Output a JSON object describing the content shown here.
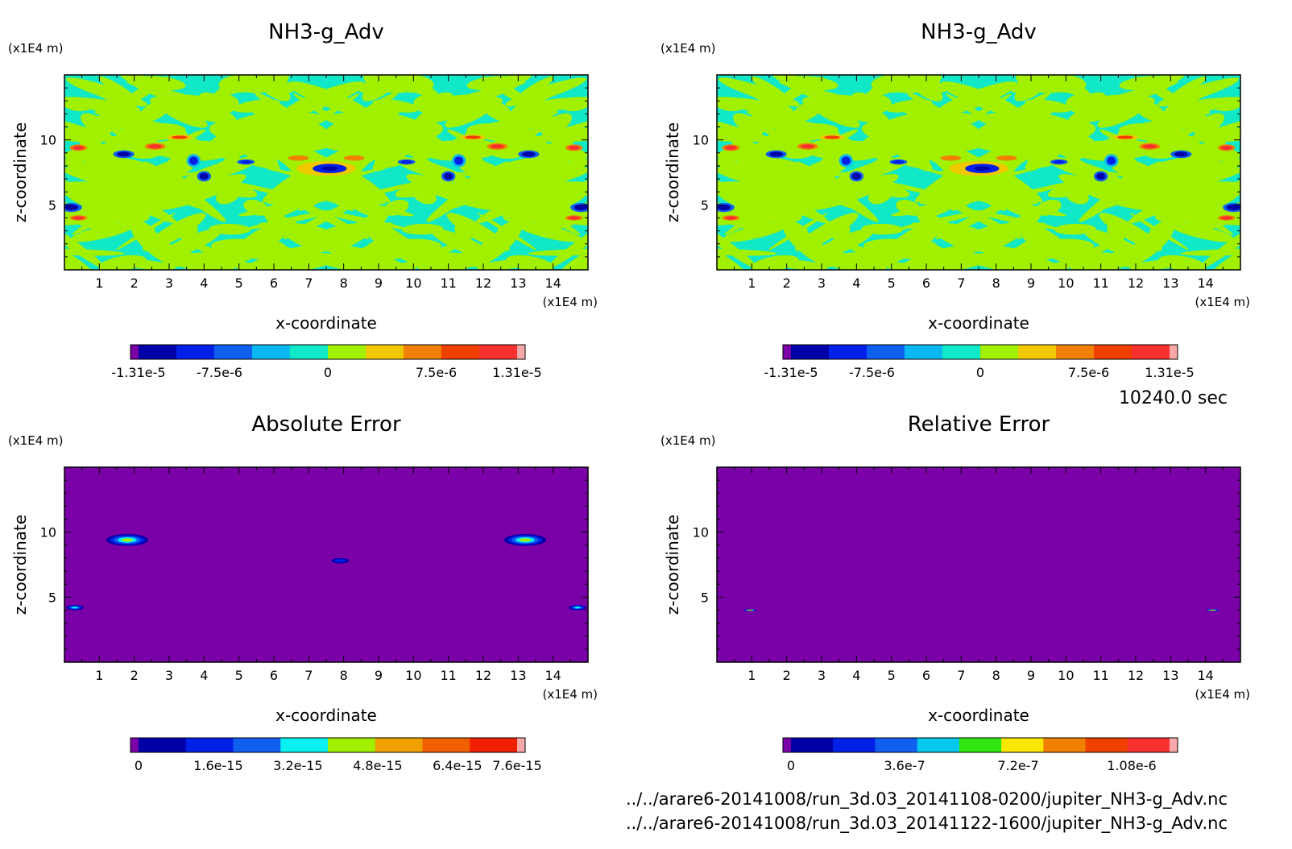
{
  "time_label": "10240.0 sec",
  "footer": {
    "file1": "../../arare6-20141008/run_3d.03_20141108-0200/jupiter_NH3-g_Adv.nc",
    "file2": "../../arare6-20141008/run_3d.03_20141122-1600/jupiter_NH3-g_Adv.nc"
  },
  "chart_data": [
    {
      "type": "heatmap",
      "title": "NH3-g_Adv",
      "xlabel": "x-coordinate",
      "ylabel": "z-coordinate",
      "x_unit": "(x1E4 m)",
      "y_unit": "(x1E4 m)",
      "xlim": [
        0,
        15
      ],
      "ylim": [
        0,
        15
      ],
      "xticks": [
        "1",
        "2",
        "3",
        "4",
        "5",
        "6",
        "7",
        "8",
        "9",
        "10",
        "11",
        "12",
        "13",
        "14"
      ],
      "yticks": [
        "5",
        "10"
      ],
      "colorbar": {
        "colors": [
          "#7a00a8",
          "#0000a8",
          "#0020e8",
          "#1060f0",
          "#08b8f0",
          "#10e8c8",
          "#a0f000",
          "#f0c800",
          "#f08000",
          "#f04000",
          "#f83030",
          "#f8a8a8"
        ],
        "tick_labels": [
          "-1.31e-5",
          "-7.5e-6",
          "0",
          "7.5e-6",
          "1.31e-5"
        ],
        "tick_positions": [
          -1.31e-05,
          -7.5e-06,
          0,
          7.5e-06,
          1.31e-05
        ],
        "range": [
          -1.31e-05,
          1.31e-05
        ]
      },
      "background_color": "#10e8c8",
      "pattern_color": "#a0f000"
    },
    {
      "type": "heatmap",
      "title": "NH3-g_Adv",
      "xlabel": "x-coordinate",
      "ylabel": "z-coordinate",
      "x_unit": "(x1E4 m)",
      "y_unit": "(x1E4 m)",
      "xlim": [
        0,
        15
      ],
      "ylim": [
        0,
        15
      ],
      "xticks": [
        "1",
        "2",
        "3",
        "4",
        "5",
        "6",
        "7",
        "8",
        "9",
        "10",
        "11",
        "12",
        "13",
        "14"
      ],
      "yticks": [
        "5",
        "10"
      ],
      "colorbar": {
        "colors": [
          "#7a00a8",
          "#0000a8",
          "#0020e8",
          "#1060f0",
          "#08b8f0",
          "#10e8c8",
          "#a0f000",
          "#f0c800",
          "#f08000",
          "#f04000",
          "#f83030",
          "#f8a8a8"
        ],
        "tick_labels": [
          "-1.31e-5",
          "-7.5e-6",
          "0",
          "7.5e-6",
          "1.31e-5"
        ],
        "tick_positions": [
          -1.31e-05,
          -7.5e-06,
          0,
          7.5e-06,
          1.31e-05
        ],
        "range": [
          -1.31e-05,
          1.31e-05
        ]
      },
      "background_color": "#10e8c8",
      "pattern_color": "#a0f000"
    },
    {
      "type": "heatmap",
      "title": "Absolute Error",
      "xlabel": "x-coordinate",
      "ylabel": "z-coordinate",
      "x_unit": "(x1E4 m)",
      "y_unit": "(x1E4 m)",
      "xlim": [
        0,
        15
      ],
      "ylim": [
        0,
        15
      ],
      "xticks": [
        "1",
        "2",
        "3",
        "4",
        "5",
        "6",
        "7",
        "8",
        "9",
        "10",
        "11",
        "12",
        "13",
        "14"
      ],
      "yticks": [
        "5",
        "10"
      ],
      "colorbar": {
        "colors": [
          "#7a00a8",
          "#0000a8",
          "#0020e8",
          "#1060f0",
          "#08f0f0",
          "#a0f000",
          "#f0a000",
          "#f06000",
          "#f02000",
          "#f8a8a8"
        ],
        "tick_labels": [
          "0",
          "1.6e-15",
          "3.2e-15",
          "4.8e-15",
          "6.4e-15",
          "7.6e-15"
        ],
        "tick_positions": [
          0,
          1.6e-15,
          3.2e-15,
          4.8e-15,
          6.4e-15,
          7.6e-15
        ],
        "range": [
          0,
          7.6e-15
        ]
      },
      "background_color": "#7a00a8",
      "features": [
        {
          "x": 1.8,
          "z": 9.4,
          "value": 4e-15
        },
        {
          "x": 13.2,
          "z": 9.4,
          "value": 4e-15
        },
        {
          "x": 0.3,
          "z": 4.2,
          "value": 3e-15
        },
        {
          "x": 14.7,
          "z": 4.2,
          "value": 3e-15
        },
        {
          "x": 7.9,
          "z": 7.8,
          "value": 1.6e-15
        }
      ]
    },
    {
      "type": "heatmap",
      "title": "Relative Error",
      "xlabel": "x-coordinate",
      "ylabel": "z-coordinate",
      "x_unit": "(x1E4 m)",
      "y_unit": "(x1E4 m)",
      "xlim": [
        0,
        15
      ],
      "ylim": [
        0,
        15
      ],
      "xticks": [
        "1",
        "2",
        "3",
        "4",
        "5",
        "6",
        "7",
        "8",
        "9",
        "10",
        "11",
        "12",
        "13",
        "14"
      ],
      "yticks": [
        "5",
        "10"
      ],
      "colorbar": {
        "colors": [
          "#7a00a8",
          "#0000a8",
          "#0020e8",
          "#1060f0",
          "#08c8f0",
          "#30e810",
          "#f8e800",
          "#f08000",
          "#f04000",
          "#f83030",
          "#f8a8a8"
        ],
        "tick_labels": [
          "0",
          "3.6e-7",
          "7.2e-7",
          "1.08e-6"
        ],
        "tick_positions": [
          0,
          3.6e-07,
          7.2e-07,
          1.08e-06
        ],
        "range": [
          0,
          1.2e-06
        ]
      },
      "background_color": "#7a00a8",
      "features": [
        {
          "x": 0.95,
          "z": 4.0,
          "value": 1e-06
        },
        {
          "x": 14.2,
          "z": 4.0,
          "value": 1e-06
        }
      ]
    }
  ]
}
